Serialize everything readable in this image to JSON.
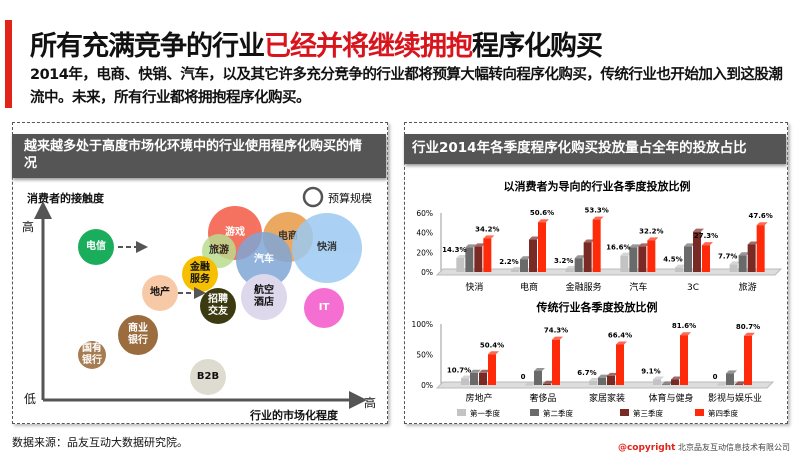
{
  "header": {
    "title_before": "所有充满竞争的行业",
    "title_highlight": "已经并将继续拥抱",
    "title_after": "程序化购买",
    "subtitle": "2014年，电商、快销、汽车，以及其它许多充分竞争的行业都将预算大幅转向程序化购买，传统行业也开始加入到这股潮流中。未来，所有行业都将拥抱程序化购买。"
  },
  "left_panel": {
    "title": "越来越多处于高度市场化环境中的行业使用程序化购买的情况",
    "y_axis_label": "消费者的接触度",
    "x_axis_label": "行业的市场化程度",
    "y_high": "高",
    "y_low": "低",
    "x_high": "高",
    "legend": "预算规模",
    "bubbles": [
      {
        "label": "游戏",
        "color": "#f55a45",
        "text": "#ffffff"
      },
      {
        "label": "电商",
        "color": "#e89a45",
        "text": "#111111"
      },
      {
        "label": "快消",
        "color": "#9ccaf3",
        "text": "#111111"
      },
      {
        "label": "旅游",
        "color": "#b9dc8f",
        "text": "#111111"
      },
      {
        "label": "汽车",
        "color": "#7fa6d6",
        "text": "#ffffff"
      },
      {
        "label": "金融服务",
        "color": "#f6c000",
        "text": "#111111"
      },
      {
        "label": "航空酒店",
        "color": "#ddd8ec",
        "text": "#111111"
      },
      {
        "label": "地产",
        "color": "#f8c9a6",
        "text": "#111111"
      },
      {
        "label": "招聘交友",
        "color": "#3b3a10",
        "text": "#ffffff"
      },
      {
        "label": "电信",
        "color": "#1aad5b",
        "text": "#ffffff"
      },
      {
        "label": "IT",
        "color": "#f56fd3",
        "text": "#ffffff"
      },
      {
        "label": "商业银行",
        "color": "#9a6c3e",
        "text": "#ffffff"
      },
      {
        "label": "国有银行",
        "color": "#a67c52",
        "text": "#ffffff"
      },
      {
        "label": "B2B",
        "color": "#dedbd0",
        "text": "#111111"
      }
    ]
  },
  "right_panel": {
    "title": "行业2014年各季度程序化购买投放量占全年的投放占比"
  },
  "colors": {
    "q1": "#c3c3c3",
    "q2": "#6a6a6a",
    "q3": "#7a2a24",
    "q4": "#ff2a0a"
  },
  "chart_data": [
    {
      "type": "bar",
      "title": "以消费者为导向的行业各季度投放比例",
      "categories": [
        "快消",
        "电商",
        "金融服务",
        "汽车",
        "3C",
        "旅游"
      ],
      "ylim": [
        0,
        60
      ],
      "yticks": [
        "0%",
        "20%",
        "40%",
        "60%"
      ],
      "series": [
        {
          "name": "第一季度",
          "values": [
            14.3,
            2.2,
            3.2,
            16.6,
            4.5,
            7.7
          ]
        },
        {
          "name": "第二季度",
          "values": [
            25,
            13,
            14,
            25,
            26,
            17
          ]
        },
        {
          "name": "第三季度",
          "values": [
            26,
            33,
            30,
            26,
            41,
            28
          ]
        },
        {
          "name": "第四季度",
          "values": [
            34.2,
            50.6,
            53.3,
            32.2,
            27.3,
            47.6
          ]
        }
      ],
      "labels_q1": [
        "14.3%",
        "2.2%",
        "3.2%",
        "16.6%",
        "4.5%",
        "7.7%"
      ],
      "labels_q4": [
        "34.2%",
        "50.6%",
        "53.3%",
        "32.2%",
        "27.3%",
        "47.6%"
      ]
    },
    {
      "type": "bar",
      "title": "传统行业各季度投放比例",
      "categories": [
        "房地产",
        "奢侈品",
        "家居家装",
        "体育与健身",
        "影视与娱乐业"
      ],
      "ylim": [
        0,
        100
      ],
      "yticks": [
        "0%",
        "50%",
        "100%"
      ],
      "series": [
        {
          "name": "第一季度",
          "values": [
            10.7,
            0,
            6.7,
            9.1,
            0
          ]
        },
        {
          "name": "第二季度",
          "values": [
            20,
            23,
            12,
            1,
            19
          ]
        },
        {
          "name": "第三季度",
          "values": [
            20,
            2,
            15,
            9,
            1
          ]
        },
        {
          "name": "第四季度",
          "values": [
            50.4,
            74.3,
            66.4,
            81.6,
            80.7
          ]
        }
      ],
      "labels_q1": [
        "10.7%",
        "0",
        "6.7%",
        "9.1%",
        "0"
      ],
      "labels_q4": [
        "50.4%",
        "74.3%",
        "66.4%",
        "81.6%",
        "80.7%"
      ],
      "legend": [
        "第一季度",
        "第二季度",
        "第三季度",
        "第四季度"
      ]
    }
  ],
  "footer": {
    "source": "数据来源：品友互动大数据研究院。",
    "copyright_mark": "@copyright",
    "company": "北京品友互动信息技术有限公司"
  }
}
